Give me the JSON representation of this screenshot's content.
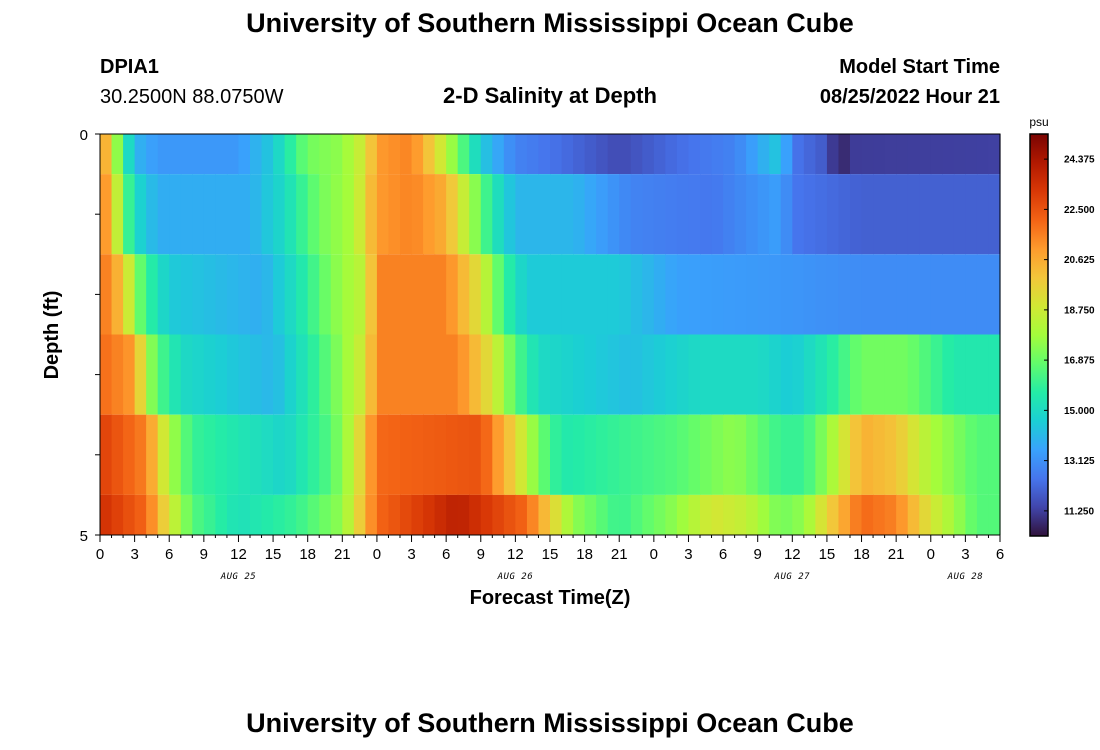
{
  "header": {
    "title_top": "University of Southern Mississippi Ocean Cube",
    "title_bottom": "University of Southern Mississippi Ocean Cube",
    "station_id": "DPIA1",
    "station_location": "30.2500N  88.0750W",
    "model_start_label": "Model Start Time",
    "model_start_value": "08/25/2022 Hour 21"
  },
  "colors": {
    "colormap": [
      "#30123b",
      "#4145ab",
      "#4675ed",
      "#39a2fc",
      "#1bcfd4",
      "#24eca6",
      "#61fc6c",
      "#a4fc3b",
      "#d1e834",
      "#f3c63a",
      "#fe9b2d",
      "#f36315",
      "#d93806",
      "#b11901",
      "#7a0402"
    ]
  },
  "chart_data": {
    "type": "heatmap",
    "title": "2-D Salinity at Depth",
    "xlabel": "Forecast Time(Z)",
    "ylabel": "Depth (ft)",
    "x_tick_labels": [
      "0",
      "3",
      "6",
      "9",
      "12",
      "15",
      "18",
      "21",
      "0",
      "3",
      "6",
      "9",
      "12",
      "15",
      "18",
      "21",
      "0",
      "3",
      "6",
      "9",
      "12",
      "15",
      "18",
      "21",
      "0",
      "3",
      "6"
    ],
    "date_labels": [
      {
        "label": "AUG 25",
        "hour": 12
      },
      {
        "label": "AUG 26",
        "hour": 36
      },
      {
        "label": "AUG 27",
        "hour": 60
      },
      {
        "label": "AUG 28",
        "hour": 75
      }
    ],
    "x_range": [
      0,
      78
    ],
    "y_tick_labels": [
      "0",
      "5"
    ],
    "y_range": [
      0,
      5
    ],
    "colorbar": {
      "unit": "psu",
      "min": 10.3125,
      "max": 25.3125,
      "tick_labels": [
        "24.375",
        "22.500",
        "20.625",
        "18.750",
        "16.875",
        "15.000",
        "13.125",
        "11.250"
      ]
    },
    "depth_layers": [
      {
        "depth_top": 0,
        "depth_bottom": 0.5,
        "keyframes": [
          [
            0,
            21.8
          ],
          [
            1,
            19
          ],
          [
            2,
            16
          ],
          [
            3,
            14
          ],
          [
            5,
            13.3
          ],
          [
            12,
            13.3
          ],
          [
            15,
            14.5
          ],
          [
            18,
            17
          ],
          [
            21,
            17.5
          ],
          [
            23,
            19
          ],
          [
            24,
            21
          ],
          [
            27,
            21.5
          ],
          [
            29,
            19.5
          ],
          [
            31,
            17
          ],
          [
            33,
            14.5
          ],
          [
            36,
            12.8
          ],
          [
            40,
            12.3
          ],
          [
            45,
            11.5
          ],
          [
            50,
            12.3
          ],
          [
            55,
            12.8
          ],
          [
            59,
            14.5
          ],
          [
            60,
            12.5
          ],
          [
            63,
            11.8
          ],
          [
            64,
            10.5
          ],
          [
            65,
            11.2
          ],
          [
            78,
            11.3
          ]
        ]
      },
      {
        "depth_top": 0.5,
        "depth_bottom": 1.5,
        "keyframes": [
          [
            0,
            22
          ],
          [
            1,
            20
          ],
          [
            2,
            17
          ],
          [
            3,
            15
          ],
          [
            5,
            13.8
          ],
          [
            13,
            13.8
          ],
          [
            16,
            15
          ],
          [
            19,
            17
          ],
          [
            22,
            18
          ],
          [
            24,
            21
          ],
          [
            27,
            21.5
          ],
          [
            30,
            20.5
          ],
          [
            32,
            18
          ],
          [
            34,
            15.5
          ],
          [
            36,
            14
          ],
          [
            41,
            14
          ],
          [
            46,
            12.8
          ],
          [
            53,
            12.5
          ],
          [
            59,
            13.5
          ],
          [
            60,
            12.5
          ],
          [
            66,
            12
          ],
          [
            78,
            12
          ]
        ]
      },
      {
        "depth_top": 1.5,
        "depth_bottom": 2.5,
        "keyframes": [
          [
            0,
            22
          ],
          [
            2,
            20
          ],
          [
            3,
            17.5
          ],
          [
            4,
            16
          ],
          [
            6,
            14.5
          ],
          [
            14,
            13.8
          ],
          [
            17,
            15.2
          ],
          [
            20,
            17.2
          ],
          [
            23,
            18.5
          ],
          [
            24,
            21.5
          ],
          [
            30,
            21.5
          ],
          [
            33,
            19
          ],
          [
            35,
            16
          ],
          [
            37,
            14.5
          ],
          [
            45,
            14.5
          ],
          [
            50,
            13.5
          ],
          [
            58,
            13.3
          ],
          [
            66,
            13
          ],
          [
            78,
            13
          ]
        ]
      },
      {
        "depth_top": 2.5,
        "depth_bottom": 3.5,
        "keyframes": [
          [
            0,
            22
          ],
          [
            3,
            21
          ],
          [
            4,
            18
          ],
          [
            5,
            16.5
          ],
          [
            7,
            15
          ],
          [
            15,
            14
          ],
          [
            18,
            15.5
          ],
          [
            21,
            17.5
          ],
          [
            23,
            19
          ],
          [
            24,
            21.5
          ],
          [
            31,
            21.5
          ],
          [
            34,
            19
          ],
          [
            36,
            16.5
          ],
          [
            38,
            15
          ],
          [
            46,
            14.2
          ],
          [
            52,
            15
          ],
          [
            57,
            15
          ],
          [
            60,
            14.5
          ],
          [
            63,
            15.5
          ],
          [
            66,
            17
          ],
          [
            70,
            17
          ],
          [
            74,
            15.5
          ],
          [
            78,
            15.5
          ]
        ]
      },
      {
        "depth_top": 3.5,
        "depth_bottom": 4.5,
        "keyframes": [
          [
            0,
            23
          ],
          [
            4,
            21.5
          ],
          [
            6,
            18
          ],
          [
            8,
            16
          ],
          [
            16,
            14.8
          ],
          [
            20,
            16.5
          ],
          [
            22,
            18.5
          ],
          [
            24,
            22
          ],
          [
            33,
            22.5
          ],
          [
            36,
            19.5
          ],
          [
            38,
            17
          ],
          [
            40,
            15.5
          ],
          [
            50,
            16.5
          ],
          [
            55,
            17.5
          ],
          [
            59,
            16
          ],
          [
            61,
            16
          ],
          [
            63,
            17.5
          ],
          [
            66,
            20.5
          ],
          [
            69,
            20
          ],
          [
            72,
            18
          ],
          [
            76,
            16.5
          ],
          [
            78,
            16.5
          ]
        ]
      },
      {
        "depth_top": 4.5,
        "depth_bottom": 5,
        "keyframes": [
          [
            0,
            23.5
          ],
          [
            4,
            22
          ],
          [
            6,
            19
          ],
          [
            8,
            16.5
          ],
          [
            12,
            15.2
          ],
          [
            17,
            16
          ],
          [
            21,
            17.5
          ],
          [
            24,
            22
          ],
          [
            31,
            24
          ],
          [
            37,
            22
          ],
          [
            41,
            17.5
          ],
          [
            45,
            16
          ],
          [
            50,
            17.5
          ],
          [
            53,
            19
          ],
          [
            56,
            18.5
          ],
          [
            59,
            17
          ],
          [
            61,
            17.5
          ],
          [
            63,
            19.5
          ],
          [
            66,
            22
          ],
          [
            69,
            21.5
          ],
          [
            72,
            19
          ],
          [
            76,
            16.5
          ],
          [
            78,
            16.5
          ]
        ]
      }
    ]
  }
}
